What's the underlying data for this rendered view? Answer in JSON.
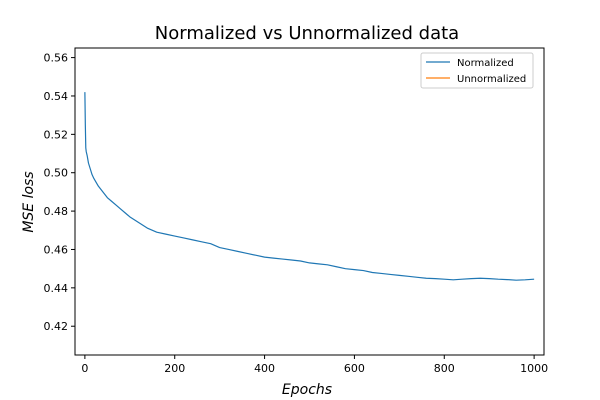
{
  "chart_data": {
    "type": "line",
    "title": "Normalized vs Unnormalized data",
    "xlabel": "Epochs",
    "ylabel": "MSE loss",
    "xlim": [
      -22,
      1022
    ],
    "ylim": [
      0.405,
      0.565
    ],
    "xticks": [
      0,
      200,
      400,
      600,
      800,
      1000
    ],
    "yticks": [
      0.42,
      0.44,
      0.46,
      0.48,
      0.5,
      0.52,
      0.54,
      0.56
    ],
    "grid": false,
    "legend_position": "top-right",
    "series": [
      {
        "name": "Normalized",
        "color": "#1f77b4",
        "x": [
          0,
          1,
          2,
          3,
          5,
          8,
          12,
          16,
          20,
          25,
          30,
          40,
          50,
          60,
          70,
          80,
          90,
          100,
          120,
          140,
          160,
          180,
          200,
          220,
          240,
          260,
          280,
          300,
          320,
          340,
          360,
          380,
          400,
          420,
          440,
          460,
          480,
          500,
          520,
          540,
          560,
          580,
          600,
          620,
          640,
          660,
          680,
          700,
          720,
          740,
          760,
          780,
          800,
          820,
          840,
          860,
          880,
          900,
          920,
          940,
          960,
          980,
          1000
        ],
        "y": [
          0.542,
          0.525,
          0.513,
          0.511,
          0.509,
          0.505,
          0.502,
          0.499,
          0.497,
          0.495,
          0.493,
          0.49,
          0.487,
          0.485,
          0.483,
          0.481,
          0.479,
          0.477,
          0.474,
          0.471,
          0.469,
          0.468,
          0.467,
          0.466,
          0.465,
          0.464,
          0.463,
          0.461,
          0.46,
          0.459,
          0.458,
          0.457,
          0.456,
          0.4555,
          0.455,
          0.4545,
          0.454,
          0.453,
          0.4525,
          0.452,
          0.451,
          0.45,
          0.4495,
          0.449,
          0.448,
          0.4475,
          0.447,
          0.4465,
          0.446,
          0.4455,
          0.445,
          0.4448,
          0.4445,
          0.4442,
          0.4445,
          0.4448,
          0.445,
          0.4448,
          0.4445,
          0.4443,
          0.444,
          0.4442,
          0.4445
        ]
      },
      {
        "name": "Unnormalized",
        "color": "#ff7f0e",
        "x": [],
        "y": []
      }
    ]
  }
}
